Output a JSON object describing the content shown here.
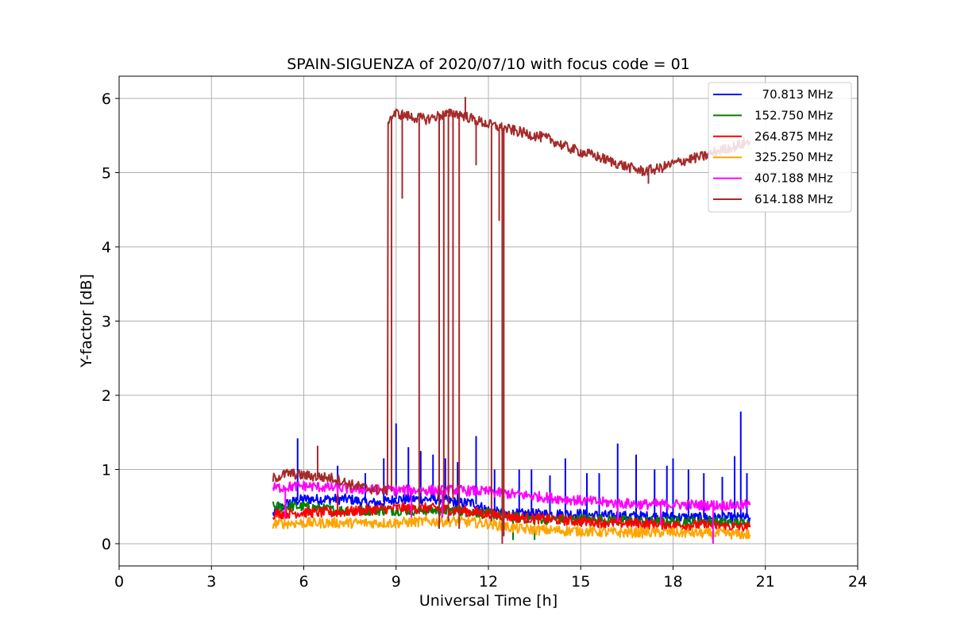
{
  "chart_data": {
    "type": "line",
    "title": "SPAIN-SIGUENZA of 2020/07/10 with focus code = 01",
    "xlabel": "Universal Time [h]",
    "ylabel": "Y-factor [dB]",
    "xlim": [
      0,
      24
    ],
    "ylim": [
      -0.3,
      6.3
    ],
    "xticks": [
      0,
      3,
      6,
      9,
      12,
      15,
      18,
      21,
      24
    ],
    "yticks": [
      0,
      1,
      2,
      3,
      4,
      5,
      6
    ],
    "grid": true,
    "legend_position": "top-right",
    "series": [
      {
        "name": "  70.813 MHz",
        "color": "#0000ff",
        "x": [
          5.0,
          5.5,
          6.0,
          6.5,
          7.0,
          7.5,
          8.0,
          8.5,
          9.0,
          9.5,
          10.0,
          10.5,
          11.0,
          11.5,
          12.0,
          12.5,
          13.0,
          13.5,
          14.0,
          14.5,
          15.0,
          15.5,
          16.0,
          16.5,
          17.0,
          17.5,
          18.0,
          18.5,
          19.0,
          19.5,
          20.0,
          20.5
        ],
        "y": [
          0.4,
          0.55,
          0.6,
          0.6,
          0.6,
          0.6,
          0.55,
          0.55,
          0.6,
          0.6,
          0.6,
          0.6,
          0.55,
          0.55,
          0.45,
          0.4,
          0.4,
          0.4,
          0.4,
          0.4,
          0.4,
          0.38,
          0.38,
          0.37,
          0.37,
          0.36,
          0.36,
          0.35,
          0.35,
          0.35,
          0.35,
          0.35
        ],
        "spikes": [
          [
            5.8,
            1.42
          ],
          [
            7.1,
            1.05
          ],
          [
            8.0,
            0.95
          ],
          [
            8.6,
            1.15
          ],
          [
            9.0,
            1.62
          ],
          [
            9.4,
            1.3
          ],
          [
            9.8,
            1.25
          ],
          [
            10.2,
            1.2
          ],
          [
            10.6,
            1.15
          ],
          [
            11.0,
            1.1
          ],
          [
            11.6,
            1.45
          ],
          [
            12.2,
            1.0
          ],
          [
            13.0,
            1.0
          ],
          [
            13.4,
            1.0
          ],
          [
            14.0,
            0.92
          ],
          [
            14.5,
            1.15
          ],
          [
            15.2,
            0.95
          ],
          [
            15.6,
            0.95
          ],
          [
            16.2,
            1.35
          ],
          [
            16.8,
            1.2
          ],
          [
            17.4,
            1.0
          ],
          [
            17.8,
            1.05
          ],
          [
            18.0,
            1.15
          ],
          [
            18.5,
            1.0
          ],
          [
            19.0,
            0.95
          ],
          [
            19.6,
            0.9
          ],
          [
            20.0,
            1.18
          ],
          [
            20.2,
            1.78
          ],
          [
            20.4,
            0.95
          ]
        ]
      },
      {
        "name": "152.750 MHz",
        "color": "#008000",
        "x": [
          5.0,
          6.0,
          7.0,
          8.0,
          9.0,
          10.0,
          11.0,
          12.0,
          13.0,
          14.0,
          15.0,
          16.0,
          17.0,
          18.0,
          19.0,
          20.0,
          20.5
        ],
        "y": [
          0.5,
          0.5,
          0.45,
          0.45,
          0.45,
          0.45,
          0.45,
          0.4,
          0.35,
          0.33,
          0.33,
          0.32,
          0.3,
          0.3,
          0.3,
          0.28,
          0.28
        ],
        "spikes": [
          [
            12.8,
            0.05
          ],
          [
            13.5,
            0.05
          ]
        ]
      },
      {
        "name": "264.875 MHz",
        "color": "#ff0000",
        "x": [
          5.0,
          6.0,
          7.0,
          8.0,
          9.0,
          10.0,
          11.0,
          12.0,
          13.0,
          14.0,
          15.0,
          16.0,
          17.0,
          18.0,
          19.0,
          20.0,
          20.5
        ],
        "y": [
          0.4,
          0.42,
          0.42,
          0.45,
          0.48,
          0.48,
          0.45,
          0.4,
          0.35,
          0.33,
          0.3,
          0.28,
          0.27,
          0.25,
          0.25,
          0.23,
          0.22
        ],
        "spikes": [
          [
            7.1,
            0.72
          ]
        ]
      },
      {
        "name": "325.250 MHz",
        "color": "#ffa500",
        "x": [
          5.0,
          6.0,
          7.0,
          8.0,
          9.0,
          10.0,
          11.0,
          12.0,
          13.0,
          14.0,
          15.0,
          16.0,
          17.0,
          18.0,
          19.0,
          20.0,
          20.5
        ],
        "y": [
          0.27,
          0.28,
          0.28,
          0.28,
          0.28,
          0.3,
          0.3,
          0.27,
          0.2,
          0.18,
          0.17,
          0.15,
          0.15,
          0.15,
          0.14,
          0.13,
          0.12
        ],
        "spikes": []
      },
      {
        "name": "407.188 MHz",
        "color": "#ff00ff",
        "x": [
          5.0,
          6.0,
          7.0,
          8.0,
          9.0,
          10.0,
          11.0,
          12.0,
          13.0,
          14.0,
          15.0,
          16.0,
          17.0,
          18.0,
          19.0,
          20.0,
          20.5
        ],
        "y": [
          0.75,
          0.78,
          0.75,
          0.73,
          0.72,
          0.72,
          0.72,
          0.7,
          0.66,
          0.62,
          0.58,
          0.55,
          0.53,
          0.53,
          0.52,
          0.52,
          0.52
        ],
        "spikes": [
          [
            5.4,
            0.35
          ],
          [
            9.5,
            0.35
          ],
          [
            10.5,
            0.35
          ],
          [
            16.2,
            0.3
          ],
          [
            17.6,
            0.25
          ],
          [
            19.3,
            0.0
          ]
        ]
      },
      {
        "name": "614.188 MHz",
        "color": "#a52a2a",
        "x": [
          5.0,
          5.5,
          6.0,
          6.5,
          7.0,
          7.5,
          8.0,
          8.5,
          8.72,
          8.74,
          9.0,
          9.5,
          10.0,
          10.5,
          11.0,
          11.5,
          12.0,
          12.5,
          13.0,
          13.5,
          14.0,
          14.5,
          15.0,
          15.5,
          16.0,
          16.5,
          17.0,
          17.5,
          18.0,
          18.5,
          19.0,
          19.5,
          20.0,
          20.5
        ],
        "y": [
          0.88,
          0.95,
          0.92,
          0.9,
          0.88,
          0.8,
          0.75,
          0.72,
          0.72,
          5.72,
          5.8,
          5.75,
          5.72,
          5.78,
          5.8,
          5.72,
          5.65,
          5.6,
          5.55,
          5.5,
          5.45,
          5.35,
          5.28,
          5.22,
          5.15,
          5.08,
          5.02,
          5.05,
          5.12,
          5.18,
          5.22,
          5.3,
          5.35,
          5.42
        ],
        "spikes": [
          [
            6.45,
            1.32
          ],
          [
            8.6,
            0.7
          ],
          [
            8.85,
            0.7
          ],
          [
            9.2,
            4.65
          ],
          [
            9.75,
            0.4
          ],
          [
            10.4,
            0.2
          ],
          [
            10.55,
            0.4
          ],
          [
            10.7,
            0.3
          ],
          [
            10.85,
            0.6
          ],
          [
            11.05,
            0.2
          ],
          [
            12.1,
            0.3
          ],
          [
            12.35,
            4.35
          ],
          [
            12.45,
            0.0
          ],
          [
            12.5,
            0.1
          ],
          [
            11.6,
            5.1
          ],
          [
            11.25,
            6.02
          ],
          [
            17.2,
            4.85
          ]
        ]
      }
    ]
  }
}
